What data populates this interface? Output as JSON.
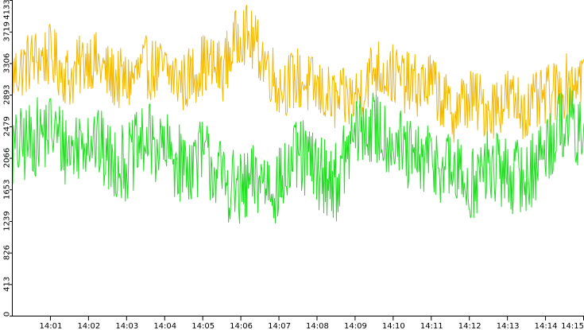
{
  "chart_data": {
    "type": "line",
    "title": "",
    "xlabel": "",
    "ylabel": "",
    "grid": false,
    "legend": "none",
    "ylim": [
      0,
      4133
    ],
    "xlim": [
      "14:00:00",
      "14:15:00"
    ],
    "y_ticks": [
      {
        "value": 0,
        "label": "0"
      },
      {
        "value": 413,
        "label": "413"
      },
      {
        "value": 826,
        "label": "826"
      },
      {
        "value": 1239,
        "label": "1239"
      },
      {
        "value": 1653,
        "label": "1653"
      },
      {
        "value": 2066,
        "label": "2066"
      },
      {
        "value": 2479,
        "label": "2479"
      },
      {
        "value": 2893,
        "label": "2893"
      },
      {
        "value": 3306,
        "label": "3306"
      },
      {
        "value": 3719,
        "label": "3719"
      },
      {
        "value": 4133,
        "label": "4133"
      }
    ],
    "x_ticks": [
      {
        "value": "14:01",
        "label": "14:01"
      },
      {
        "value": "14:02",
        "label": "14:02"
      },
      {
        "value": "14:03",
        "label": "14:03"
      },
      {
        "value": "14:04",
        "label": "14:04"
      },
      {
        "value": "14:05",
        "label": "14:05"
      },
      {
        "value": "14:06",
        "label": "14:06"
      },
      {
        "value": "14:07",
        "label": "14:07"
      },
      {
        "value": "14:08",
        "label": "14:08"
      },
      {
        "value": "14:09",
        "label": "14:09"
      },
      {
        "value": "14:10",
        "label": "14:10"
      },
      {
        "value": "14:11",
        "label": "14:11"
      },
      {
        "value": "14:12",
        "label": "14:12"
      },
      {
        "value": "14:13",
        "label": "14:13"
      },
      {
        "value": "14:14",
        "label": "14:14"
      },
      {
        "value": "14:15",
        "label": "14:15"
      }
    ],
    "series": [
      {
        "color": "#f5b800",
        "x": [
          "14:00:00",
          "14:00:30",
          "14:01:00",
          "14:01:30",
          "14:02:00",
          "14:02:30",
          "14:03:00",
          "14:03:30",
          "14:04:00",
          "14:04:30",
          "14:05:00",
          "14:05:30",
          "14:06:00",
          "14:06:30",
          "14:07:00",
          "14:07:30",
          "14:08:00",
          "14:08:30",
          "14:09:00",
          "14:09:30",
          "14:10:00",
          "14:10:30",
          "14:11:00",
          "14:11:30",
          "14:12:00",
          "14:12:30",
          "14:13:00",
          "14:13:30",
          "14:14:00",
          "14:14:30",
          "14:15:00"
        ],
        "values": [
          3150,
          3350,
          3400,
          3100,
          3400,
          3150,
          3050,
          3250,
          3200,
          3050,
          3300,
          3200,
          3750,
          3450,
          3000,
          3100,
          2950,
          2800,
          2850,
          3250,
          3150,
          3000,
          3050,
          2650,
          2850,
          2700,
          2850,
          2700,
          2850,
          3000,
          3200
        ]
      },
      {
        "color": "#22dd22",
        "x": [
          "14:00:00",
          "14:00:30",
          "14:01:00",
          "14:01:30",
          "14:02:00",
          "14:02:30",
          "14:03:00",
          "14:03:30",
          "14:04:00",
          "14:04:30",
          "14:05:00",
          "14:05:30",
          "14:06:00",
          "14:06:30",
          "14:07:00",
          "14:07:30",
          "14:08:00",
          "14:08:30",
          "14:09:00",
          "14:09:30",
          "14:10:00",
          "14:10:30",
          "14:11:00",
          "14:11:30",
          "14:12:00",
          "14:12:30",
          "14:13:00",
          "14:13:30",
          "14:14:00",
          "14:14:30",
          "14:15:00"
        ],
        "values": [
          2150,
          2300,
          2450,
          2150,
          2400,
          2050,
          2000,
          2300,
          2150,
          1950,
          2100,
          1800,
          1600,
          1800,
          1700,
          2100,
          1900,
          1750,
          2400,
          2450,
          2300,
          2000,
          2050,
          1900,
          1700,
          1950,
          1850,
          1800,
          2200,
          2600,
          2250
        ]
      }
    ]
  }
}
